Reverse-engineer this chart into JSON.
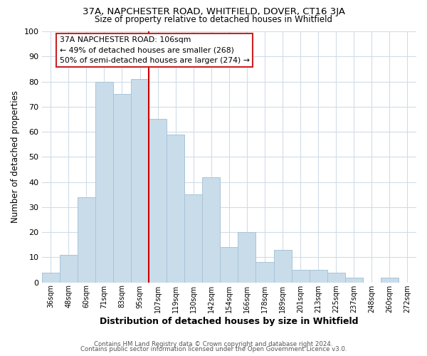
{
  "title1": "37A, NAPCHESTER ROAD, WHITFIELD, DOVER, CT16 3JA",
  "title2": "Size of property relative to detached houses in Whitfield",
  "xlabel": "Distribution of detached houses by size in Whitfield",
  "ylabel": "Number of detached properties",
  "footer1": "Contains HM Land Registry data © Crown copyright and database right 2024.",
  "footer2": "Contains public sector information licensed under the Open Government Licence v3.0.",
  "categories": [
    "36sqm",
    "48sqm",
    "60sqm",
    "71sqm",
    "83sqm",
    "95sqm",
    "107sqm",
    "119sqm",
    "130sqm",
    "142sqm",
    "154sqm",
    "166sqm",
    "178sqm",
    "189sqm",
    "201sqm",
    "213sqm",
    "225sqm",
    "237sqm",
    "248sqm",
    "260sqm",
    "272sqm"
  ],
  "values": [
    4,
    11,
    34,
    80,
    75,
    81,
    65,
    59,
    35,
    42,
    14,
    20,
    8,
    13,
    5,
    5,
    4,
    2,
    0,
    2,
    0
  ],
  "bar_color": "#c9dcea",
  "bar_edge_color": "#a8c4d8",
  "vline_x_index": 6,
  "vline_color": "#cc0000",
  "annotation_title": "37A NAPCHESTER ROAD: 106sqm",
  "annotation_line1": "← 49% of detached houses are smaller (268)",
  "annotation_line2": "50% of semi-detached houses are larger (274) →",
  "annotation_box_facecolor": "white",
  "annotation_box_edgecolor": "#cc2222",
  "ylim": [
    0,
    100
  ],
  "yticks": [
    0,
    10,
    20,
    30,
    40,
    50,
    60,
    70,
    80,
    90,
    100
  ],
  "background_color": "#ffffff",
  "grid_color": "#d0dce8"
}
